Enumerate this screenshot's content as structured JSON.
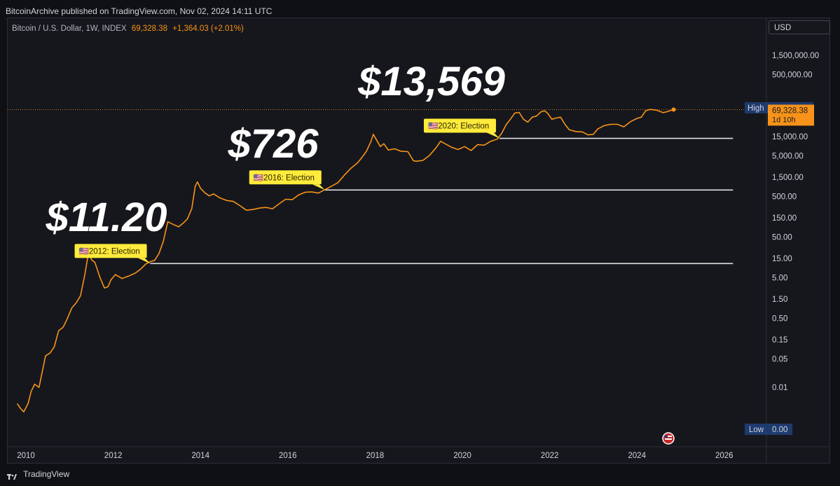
{
  "attribution": "BitcoinArchive published on TradingView.com, Nov 02, 2024 14:11 UTC",
  "symbol": {
    "name": "Bitcoin / U.S. Dollar, 1W, INDEX",
    "price": "69,328.38",
    "change": "+1,364.03 (+2.01%)"
  },
  "currency": "USD",
  "footer": {
    "brand": "TradingView"
  },
  "colors": {
    "line": "#f7931a",
    "callout": "#ffeb3b",
    "level": "#e0e0e0",
    "badge_blue": "#1e3a6e"
  },
  "chart_data": {
    "type": "line",
    "title": "",
    "xlabel": "",
    "ylabel": "",
    "yscale": "log",
    "xlim": [
      2009.7,
      2027.0
    ],
    "series": [
      {
        "x": [
          2009.8,
          2009.88,
          2009.95,
          2010.05,
          2010.12,
          2010.2,
          2010.3,
          2010.45,
          2010.55,
          2010.65,
          2010.75,
          2010.85,
          2010.95,
          2011.05,
          2011.15,
          2011.25,
          2011.35,
          2011.42,
          2011.45,
          2011.5,
          2011.58,
          2011.7,
          2011.8,
          2011.88,
          2011.95,
          2012.05,
          2012.2,
          2012.35,
          2012.5,
          2012.62,
          2012.75,
          2012.85,
          2012.95,
          2013.05,
          2013.15,
          2013.25,
          2013.32,
          2013.4,
          2013.5,
          2013.6,
          2013.7,
          2013.8,
          2013.88,
          2013.93,
          2014.0,
          2014.1,
          2014.2,
          2014.3,
          2014.45,
          2014.6,
          2014.75,
          2014.9,
          2015.05,
          2015.2,
          2015.35,
          2015.5,
          2015.65,
          2015.8,
          2015.95,
          2016.1,
          2016.25,
          2016.4,
          2016.55,
          2016.7,
          2016.85,
          2017.0,
          2017.15,
          2017.3,
          2017.45,
          2017.6,
          2017.7,
          2017.8,
          2017.9,
          2017.96,
          2018.05,
          2018.12,
          2018.2,
          2018.3,
          2018.45,
          2018.6,
          2018.75,
          2018.88,
          2018.95,
          2019.1,
          2019.25,
          2019.4,
          2019.5,
          2019.6,
          2019.75,
          2019.9,
          2020.05,
          2020.2,
          2020.35,
          2020.5,
          2020.65,
          2020.8,
          2020.9,
          2021.0,
          2021.1,
          2021.2,
          2021.3,
          2021.4,
          2021.5,
          2021.6,
          2021.7,
          2021.8,
          2021.88,
          2021.95,
          2022.05,
          2022.15,
          2022.25,
          2022.35,
          2022.45,
          2022.6,
          2022.75,
          2022.88,
          2023.0,
          2023.1,
          2023.25,
          2023.4,
          2023.55,
          2023.7,
          2023.85,
          2024.0,
          2024.1,
          2024.2,
          2024.3,
          2024.45,
          2024.6,
          2024.7,
          2024.8,
          2024.84
        ],
        "y": [
          0.004,
          0.003,
          0.0025,
          0.004,
          0.008,
          0.012,
          0.01,
          0.06,
          0.07,
          0.1,
          0.25,
          0.3,
          0.5,
          0.9,
          1.2,
          1.8,
          6,
          17,
          25,
          14,
          12,
          5,
          2.8,
          3,
          4.5,
          6,
          4.8,
          5.5,
          6.5,
          8,
          11,
          12.5,
          13.5,
          20,
          40,
          120,
          110,
          100,
          90,
          110,
          140,
          250,
          900,
          1150,
          800,
          620,
          520,
          580,
          460,
          400,
          380,
          300,
          230,
          240,
          260,
          270,
          250,
          330,
          430,
          420,
          550,
          640,
          650,
          610,
          740,
          900,
          1100,
          1700,
          2500,
          3400,
          4600,
          6500,
          11000,
          17000,
          11500,
          8500,
          10000,
          7000,
          7500,
          6500,
          6400,
          3800,
          3700,
          3900,
          5200,
          8000,
          11500,
          10000,
          8200,
          7200,
          8500,
          6800,
          9500,
          9200,
          11500,
          13000,
          18000,
          29000,
          40000,
          57000,
          59000,
          40000,
          34000,
          45000,
          48000,
          61000,
          65000,
          57000,
          40000,
          43000,
          45000,
          30000,
          22000,
          20000,
          19500,
          16500,
          17000,
          23000,
          28000,
          30000,
          30000,
          26000,
          35000,
          42000,
          45000,
          65000,
          70000,
          67000,
          58000,
          62000,
          67000,
          69328.38
        ]
      }
    ],
    "y_ticks": [
      "1,500,000.00",
      "500,000.00",
      "15,000.00",
      "5,000.00",
      "1,500.00",
      "500.00",
      "150.00",
      "50.00",
      "15.00",
      "5.00",
      "1.50",
      "0.50",
      "0.15",
      "0.05",
      "0.01"
    ],
    "y_tick_values": [
      1500000,
      500000,
      15000,
      5000,
      1500,
      500,
      150,
      50,
      15,
      5,
      1.5,
      0.5,
      0.15,
      0.05,
      0.01
    ],
    "x_ticks": [
      "2010",
      "2012",
      "2014",
      "2016",
      "2018",
      "2020",
      "2022",
      "2024",
      "2026"
    ],
    "x_tick_values": [
      2010,
      2012,
      2014,
      2016,
      2018,
      2020,
      2022,
      2024,
      2026
    ],
    "levels": [
      {
        "value": 11.2,
        "x_start": 2012.85,
        "x_end": 2026.2
      },
      {
        "value": 726,
        "x_start": 2016.85,
        "x_end": 2026.2
      },
      {
        "value": 13569,
        "x_start": 2020.85,
        "x_end": 2026.2
      }
    ],
    "annotations": [
      {
        "big_label": "$11.20",
        "callout": "🇺🇸2012: Election",
        "x": 2012.85,
        "y": 11.2
      },
      {
        "big_label": "$726",
        "callout": "🇺🇸2016: Election",
        "x": 2016.85,
        "y": 726
      },
      {
        "big_label": "$13,569",
        "callout": "🇺🇸2020: Election",
        "x": 2020.85,
        "y": 13569
      }
    ],
    "high": {
      "label": "High",
      "value": "73,757.39",
      "y": 73757.39
    },
    "low": {
      "label": "Low",
      "value": "0.00",
      "y": 0.0012
    },
    "last": {
      "value": "69,328.38",
      "countdown": "1d 10h",
      "y": 69328.38
    }
  }
}
